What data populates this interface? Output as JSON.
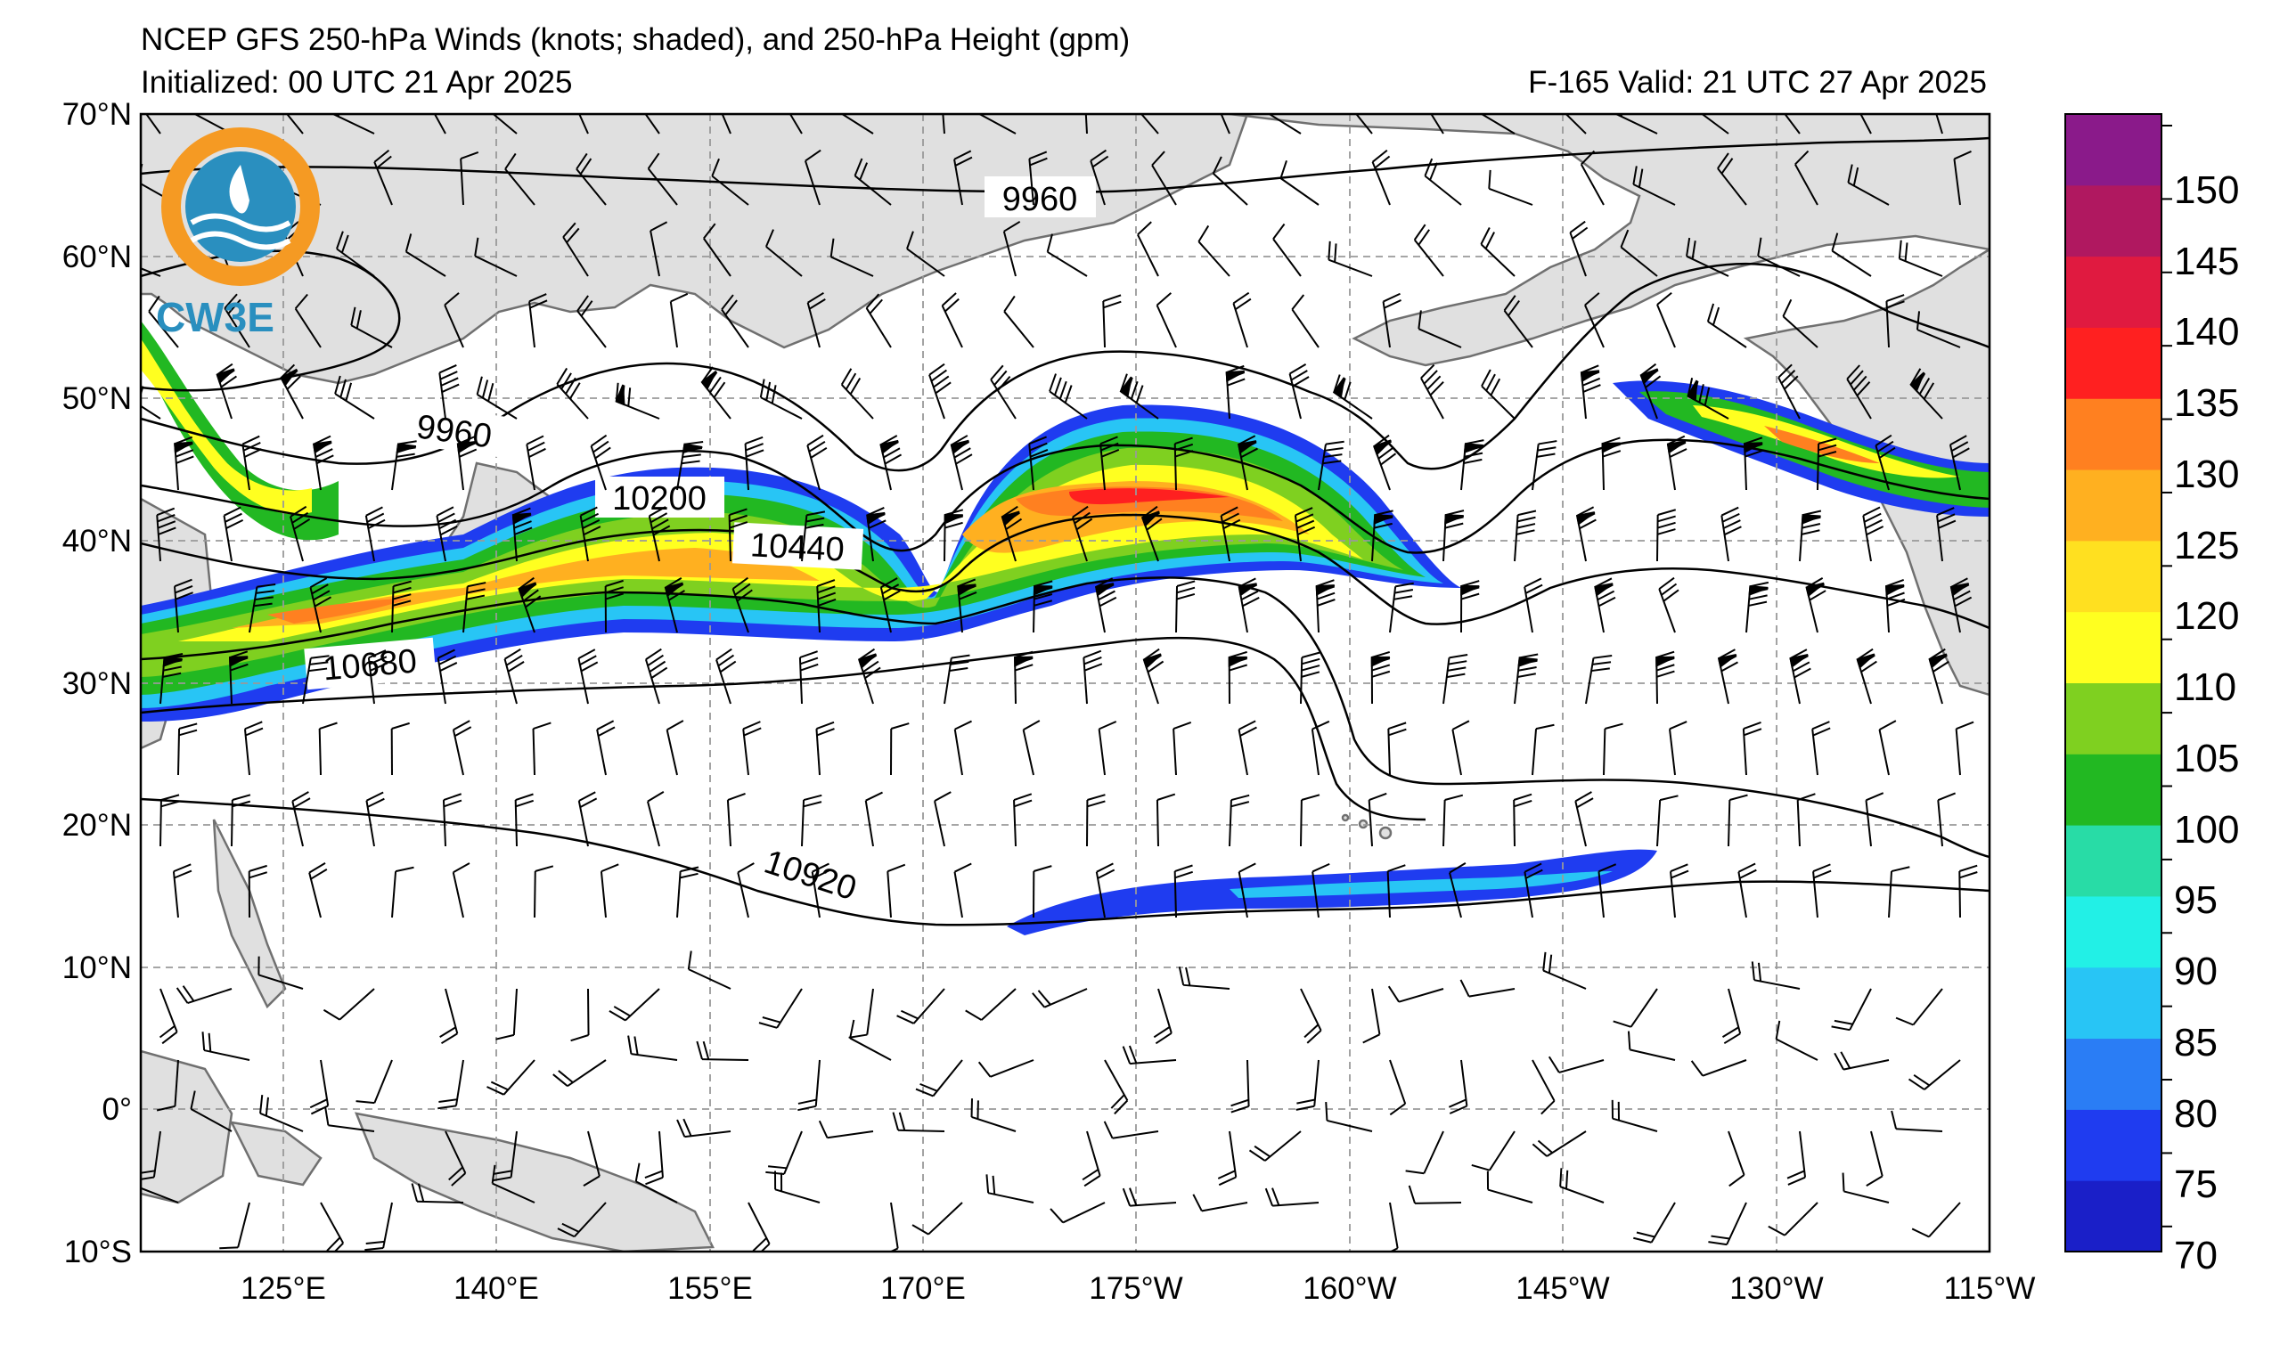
{
  "title": {
    "line1": "NCEP GFS 250-hPa Winds (knots; shaded), and 250-hPa Height (gpm)",
    "line2_left": "Initialized: 00 UTC 21 Apr 2025",
    "line2_right": "F-165  Valid: 21 UTC 27 Apr 2025"
  },
  "logo": {
    "text": "CW3E",
    "ring_color": "#f59a23",
    "wave_color": "#2a8fbf"
  },
  "axes": {
    "lat_labels": [
      "70°N",
      "60°N",
      "50°N",
      "40°N",
      "30°N",
      "20°N",
      "10°N",
      "0°",
      "10°S"
    ],
    "lon_labels": [
      "125°E",
      "140°E",
      "155°E",
      "170°E",
      "175°W",
      "160°W",
      "145°W",
      "130°W",
      "115°W"
    ],
    "lat_range": [
      -10,
      70
    ],
    "lon_range_east": [
      115,
      245
    ]
  },
  "colorbar": {
    "labels": [
      "150",
      "145",
      "140",
      "135",
      "130",
      "125",
      "120",
      "110",
      "105",
      "100",
      "95",
      "90",
      "85",
      "80",
      "75",
      "70"
    ],
    "colors_bottom_to_top": [
      "#1a1fc8",
      "#1f3cf0",
      "#2a7df5",
      "#28c5f5",
      "#22f0e6",
      "#28dca6",
      "#22b822",
      "#7fd020",
      "#ffff20",
      "#ffe020",
      "#ffb020",
      "#ff8020",
      "#ff2020",
      "#e01a40",
      "#b01860",
      "#8a1a8a"
    ]
  },
  "contour_labels": [
    "9960",
    "9960",
    "10200",
    "10440",
    "10680",
    "10920"
  ],
  "colors": {
    "land": "#e0e0e0",
    "coast": "#707070",
    "grid": "#999999",
    "contour": "#000000"
  }
}
